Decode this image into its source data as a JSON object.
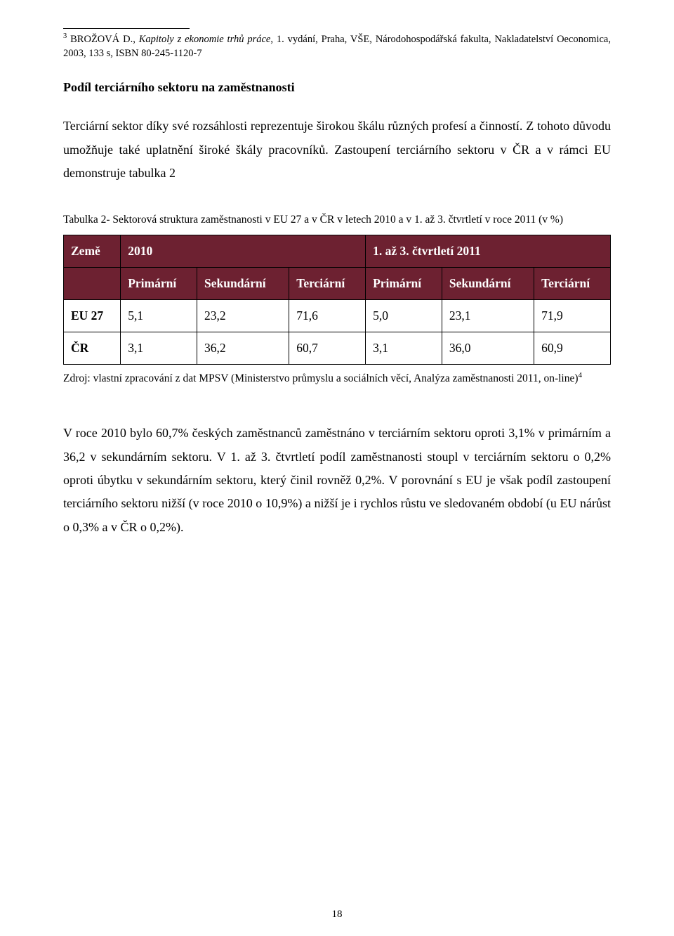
{
  "footnote": {
    "marker": "3",
    "text_before_italic": " BROŽOVÁ D., ",
    "italic": "Kapitoly z ekonomie trhů práce",
    "text_after_italic": ", 1. vydání, Praha, VŠE, Národohospodářská fakulta, Nakladatelství Oeconomica, 2003, 133 s, ISBN 80-245-1120-7"
  },
  "heading": "Podíl terciárního sektoru na zaměstnanosti",
  "para1": "Terciární sektor díky své rozsáhlosti reprezentuje širokou škálu různých profesí a činností. Z tohoto důvodu umožňuje také uplatnění široké škály pracovníků. Zastoupení terciárního sektoru v ČR a v rámci EU demonstruje tabulka 2",
  "table_caption": "Tabulka 2- Sektorová struktura zaměstnanosti v EU 27 a v ČR v letech 2010 a v 1. až 3. čtvrtletí v roce 2011 (v %)",
  "table": {
    "header_bg": "#6d2131",
    "header_fg": "#ffffff",
    "row1": {
      "c0": "Země",
      "c1": "2010",
      "c2": "1. až 3. čtvrtletí 2011"
    },
    "row2": {
      "c1": "Primární",
      "c2": "Sekundární",
      "c3": "Terciární",
      "c4": "Primární",
      "c5": "Sekundární",
      "c6": "Terciární"
    },
    "data_rows": [
      {
        "label": "EU 27",
        "v": [
          "5,1",
          "23,2",
          "71,6",
          "5,0",
          "23,1",
          "71,9"
        ]
      },
      {
        "label": "ČR",
        "v": [
          "3,1",
          "36,2",
          "60,7",
          "3,1",
          "36,0",
          "60,9"
        ]
      }
    ]
  },
  "table_source": {
    "text": "Zdroj: vlastní zpracování z dat MPSV (Ministerstvo průmyslu a sociálních věcí, Analýza zaměstnanosti 2011, on-line)",
    "sup": "4"
  },
  "para2": "V roce 2010 bylo 60,7% českých zaměstnanců zaměstnáno v terciárním sektoru oproti 3,1% v primárním a 36,2 v sekundárním sektoru. V 1. až 3. čtvrtletí podíl zaměstnanosti stoupl v terciárním sektoru o 0,2% oproti úbytku v sekundárním sektoru, který činil rovněž 0,2%. V porovnání s EU je však podíl zastoupení terciárního sektoru nižší (v roce 2010 o 10,9%) a nižší je i rychlos růstu ve sledovaném období (u EU nárůst o 0,3% a v ČR o 0,2%).",
  "page_number": "18"
}
